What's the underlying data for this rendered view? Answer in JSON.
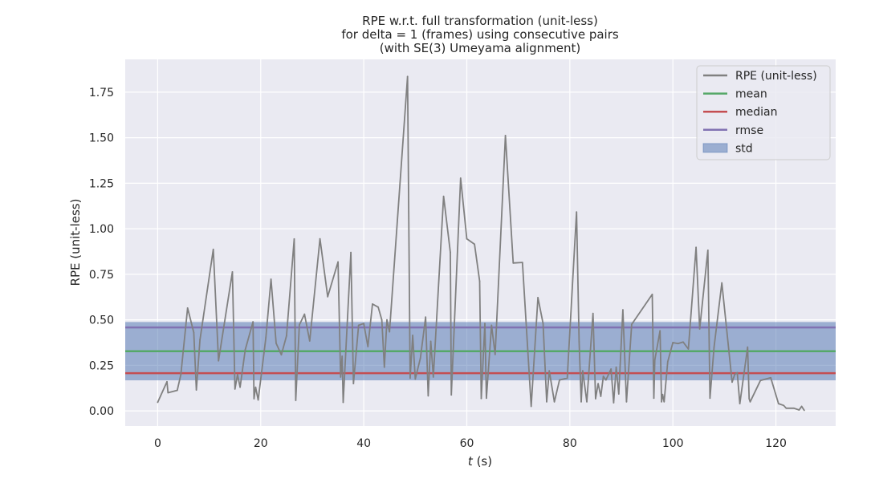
{
  "chart_data": {
    "type": "line",
    "title": [
      "RPE w.r.t. full transformation (unit-less)",
      "for delta = 1 (frames) using consecutive pairs",
      "(with SE(3) Umeyama alignment)"
    ],
    "xlabel_italic": "t",
    "xlabel_rest": " (s)",
    "ylabel": "RPE (unit-less)",
    "xlim": [
      -6.3,
      131.6
    ],
    "ylim": [
      -0.083,
      1.93
    ],
    "xticks": [
      0,
      20,
      40,
      60,
      80,
      100,
      120
    ],
    "yticks": [
      0.0,
      0.25,
      0.5,
      0.75,
      1.0,
      1.25,
      1.5,
      1.75
    ],
    "ytick_format": 2,
    "grid": true,
    "legend_placement": "top-right",
    "stats": {
      "mean": 0.328,
      "median": 0.207,
      "rmse": 0.458,
      "std": 0.16
    },
    "legend": [
      {
        "label": "RPE (unit-less)",
        "kind": "line",
        "color": "#808080"
      },
      {
        "label": "mean",
        "kind": "line",
        "color": "#55a868"
      },
      {
        "label": "median",
        "kind": "line",
        "color": "#c44e52"
      },
      {
        "label": "rmse",
        "kind": "line",
        "color": "#8172b2"
      },
      {
        "label": "std",
        "kind": "patch",
        "color": "#4c72b0"
      }
    ],
    "series": [
      {
        "name": "RPE (unit-less)",
        "color": "#808080",
        "x": [
          0.0,
          1.8,
          2.0,
          3.8,
          4.5,
          5.8,
          7.0,
          7.5,
          8.2,
          10.8,
          11.8,
          14.5,
          15.0,
          15.5,
          16.0,
          17.0,
          18.5,
          18.7,
          19.0,
          19.5,
          21.0,
          22.0,
          23.0,
          24.0,
          25.0,
          26.5,
          26.8,
          27.5,
          28.5,
          29.5,
          31.5,
          33.0,
          35.0,
          35.5,
          35.8,
          36.0,
          37.5,
          38.0,
          39.0,
          40.0,
          40.8,
          41.7,
          42.8,
          43.5,
          44.0,
          44.5,
          45.0,
          48.5,
          49.0,
          49.5,
          50.0,
          51.0,
          52.0,
          52.5,
          53.0,
          53.5,
          55.5,
          56.8,
          57.0,
          58.8,
          60.0,
          61.5,
          62.5,
          62.8,
          63.5,
          63.8,
          64.8,
          65.5,
          67.5,
          69.0,
          70.8,
          72.5,
          73.8,
          74.8,
          75.5,
          76.0,
          77.0,
          78.0,
          79.5,
          81.3,
          81.8,
          82.2,
          82.5,
          83.3,
          84.5,
          85.0,
          85.5,
          86.0,
          86.5,
          87.0,
          88.0,
          88.5,
          89.0,
          89.5,
          90.3,
          91.0,
          92.0,
          96.0,
          96.3,
          96.5,
          97.5,
          97.8,
          98.0,
          98.3,
          99.0,
          100.0,
          101.0,
          102.0,
          103.0,
          104.5,
          105.2,
          106.8,
          107.2,
          108.0,
          109.5,
          111.5,
          112.0,
          112.5,
          113.0,
          114.5,
          114.8,
          115.0,
          117.0,
          119.0,
          120.5,
          121.5,
          122.0,
          123.5,
          124.5,
          125.0,
          125.5
        ],
        "y": [
          0.047,
          0.16,
          0.1,
          0.113,
          0.2,
          0.565,
          0.43,
          0.115,
          0.39,
          0.887,
          0.275,
          0.763,
          0.12,
          0.2,
          0.13,
          0.336,
          0.489,
          0.067,
          0.13,
          0.06,
          0.402,
          0.723,
          0.371,
          0.308,
          0.412,
          0.944,
          0.058,
          0.472,
          0.531,
          0.384,
          0.945,
          0.627,
          0.818,
          0.186,
          0.3,
          0.047,
          0.87,
          0.15,
          0.47,
          0.48,
          0.353,
          0.587,
          0.57,
          0.5,
          0.24,
          0.5,
          0.434,
          1.836,
          0.18,
          0.415,
          0.175,
          0.29,
          0.515,
          0.083,
          0.382,
          0.186,
          1.178,
          0.87,
          0.088,
          1.278,
          0.945,
          0.915,
          0.712,
          0.068,
          0.48,
          0.07,
          0.47,
          0.31,
          1.512,
          0.812,
          0.815,
          0.025,
          0.622,
          0.48,
          0.05,
          0.22,
          0.05,
          0.17,
          0.18,
          1.092,
          0.38,
          0.05,
          0.22,
          0.05,
          0.535,
          0.067,
          0.15,
          0.08,
          0.19,
          0.17,
          0.23,
          0.045,
          0.24,
          0.093,
          0.555,
          0.05,
          0.475,
          0.64,
          0.07,
          0.28,
          0.44,
          0.05,
          0.09,
          0.05,
          0.27,
          0.375,
          0.37,
          0.378,
          0.34,
          0.898,
          0.45,
          0.882,
          0.07,
          0.35,
          0.703,
          0.158,
          0.2,
          0.21,
          0.04,
          0.35,
          0.067,
          0.05,
          0.167,
          0.182,
          0.04,
          0.03,
          0.015,
          0.015,
          0.005,
          0.025,
          0.003
        ]
      }
    ]
  }
}
